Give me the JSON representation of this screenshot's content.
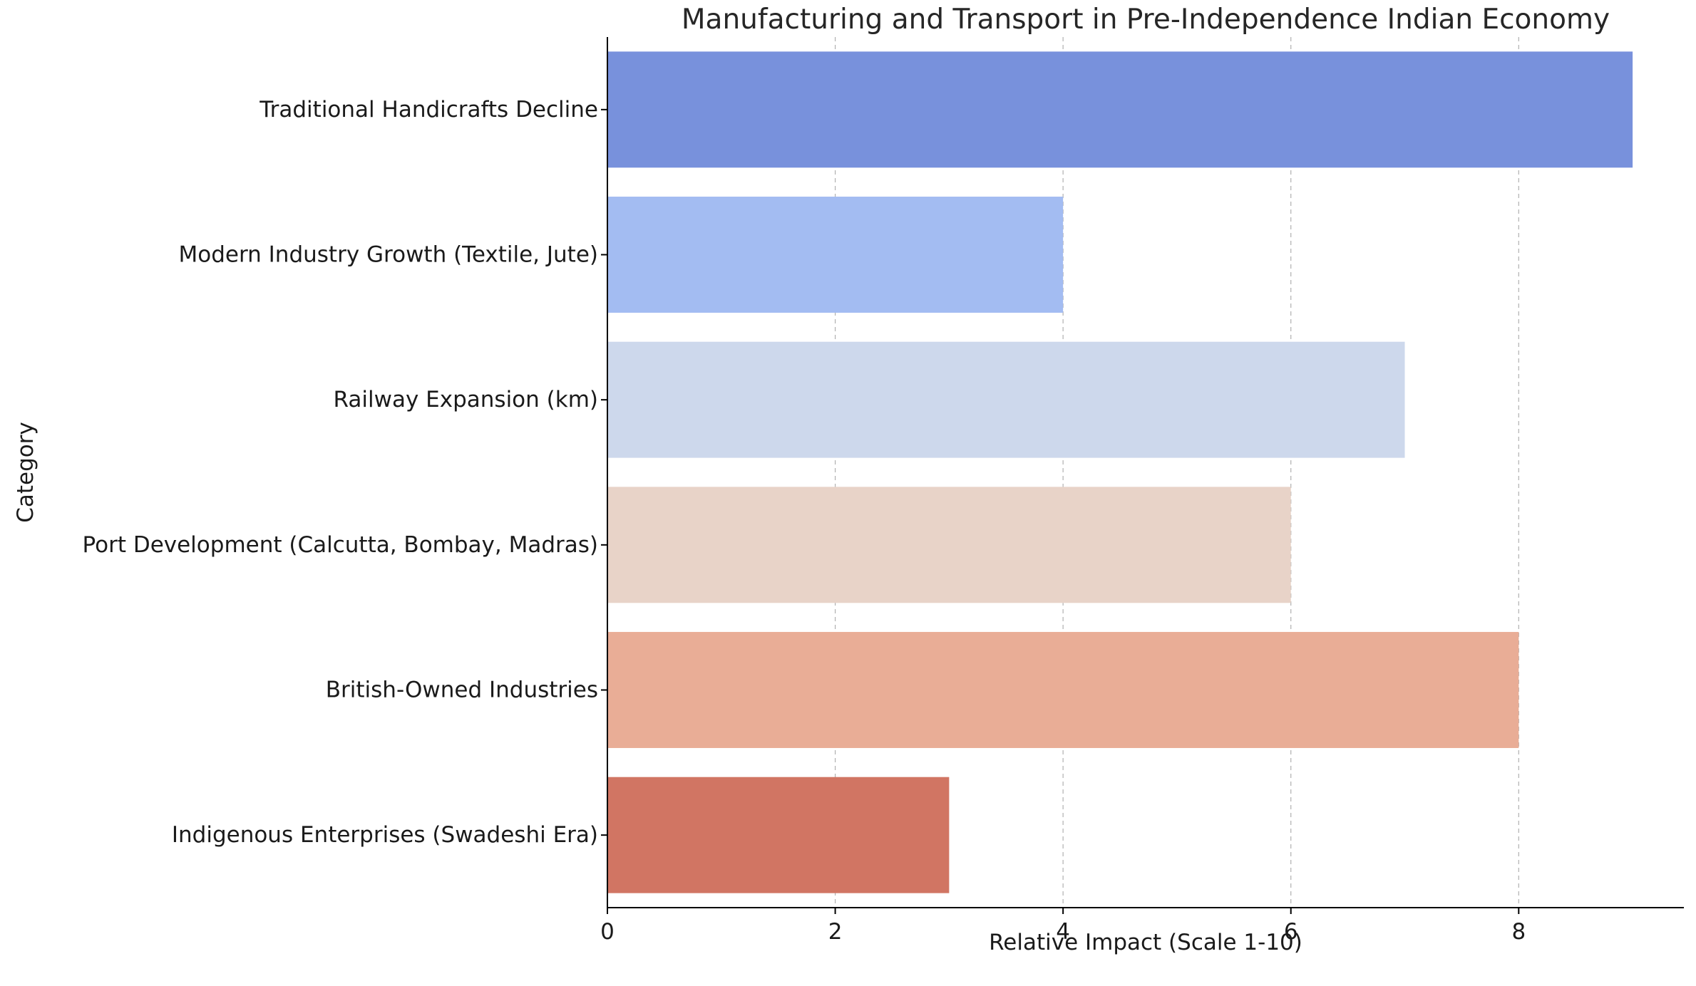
{
  "chart_data": {
    "type": "bar",
    "orientation": "horizontal",
    "title": "Manufacturing and Transport in Pre-Independence Indian Economy",
    "xlabel": "Relative Impact (Scale 1-10)",
    "ylabel": "Category",
    "xlim": [
      0,
      9.45
    ],
    "xticks": [
      0,
      2,
      4,
      6,
      8
    ],
    "grid": "x-dashed",
    "categories": [
      "Traditional Handicrafts Decline",
      "Modern Industry Growth (Textile, Jute)",
      "Railway Expansion (km)",
      "Port Development (Calcutta, Bombay, Madras)",
      "British-Owned Industries",
      "Indigenous Enterprises (Swadeshi Era)"
    ],
    "values": [
      9,
      4,
      7,
      6,
      8,
      3
    ],
    "colors": [
      "#7891dc",
      "#a3bcf2",
      "#cdd8ec",
      "#e8d3c8",
      "#e9ad96",
      "#d17563"
    ]
  }
}
